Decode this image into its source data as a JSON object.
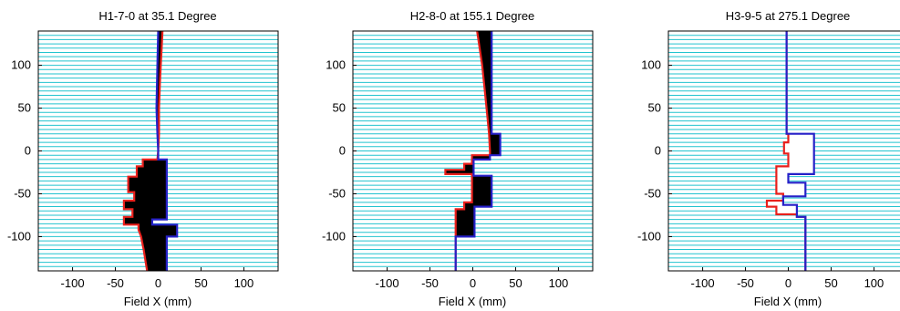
{
  "chart_data": [
    {
      "type": "line",
      "title": "H1-7-0 at 35.1 Degree",
      "xlabel": "Field X (mm)",
      "ylabel": "",
      "xlim": [
        -140,
        140
      ],
      "ylim": [
        -140,
        140
      ],
      "xticks": [
        -100,
        -50,
        0,
        50,
        100
      ],
      "yticks": [
        100,
        50,
        0,
        -50,
        -100
      ],
      "grid": "horizontal cyan lines every 5 mm",
      "fill_between_profiles": "black",
      "series": [
        {
          "color": "#e8201c",
          "points": [
            [
              5,
              140
            ],
            [
              4,
              120
            ],
            [
              3,
              100
            ],
            [
              2,
              80
            ],
            [
              1,
              50
            ],
            [
              1,
              20
            ],
            [
              0,
              0
            ],
            [
              -1,
              -10
            ],
            [
              -18,
              -10
            ],
            [
              -18,
              -18
            ],
            [
              -25,
              -18
            ],
            [
              -25,
              -30
            ],
            [
              -35,
              -30
            ],
            [
              -35,
              -48
            ],
            [
              -28,
              -48
            ],
            [
              -28,
              -58
            ],
            [
              -40,
              -58
            ],
            [
              -40,
              -68
            ],
            [
              -30,
              -68
            ],
            [
              -30,
              -77
            ],
            [
              -40,
              -77
            ],
            [
              -40,
              -86
            ],
            [
              -23,
              -86
            ],
            [
              -23,
              -92
            ],
            [
              -20,
              -100
            ],
            [
              -17,
              -115
            ],
            [
              -13,
              -140
            ]
          ]
        },
        {
          "color": "#2620c8",
          "points": [
            [
              0,
              140
            ],
            [
              -1,
              100
            ],
            [
              -2,
              50
            ],
            [
              -1,
              20
            ],
            [
              0,
              0
            ],
            [
              0,
              -10
            ],
            [
              10,
              -10
            ],
            [
              10,
              -80
            ],
            [
              -7,
              -80
            ],
            [
              -7,
              -86
            ],
            [
              22,
              -86
            ],
            [
              22,
              -100
            ],
            [
              10,
              -100
            ],
            [
              10,
              -140
            ]
          ]
        }
      ]
    },
    {
      "type": "line",
      "title": "H2-8-0 at 155.1 Degree",
      "xlabel": "Field X (mm)",
      "ylabel": "",
      "xlim": [
        -140,
        140
      ],
      "ylim": [
        -140,
        140
      ],
      "xticks": [
        -100,
        -50,
        0,
        50,
        100
      ],
      "yticks": [
        100,
        50,
        0,
        -50,
        -100
      ],
      "grid": "horizontal cyan lines every 5 mm",
      "fill_between_profiles": "black",
      "series": [
        {
          "color": "#e8201c",
          "points": [
            [
              5,
              140
            ],
            [
              8,
              120
            ],
            [
              11,
              100
            ],
            [
              14,
              70
            ],
            [
              17,
              40
            ],
            [
              19,
              20
            ],
            [
              20,
              0
            ],
            [
              20,
              -5
            ],
            [
              -1,
              -5
            ],
            [
              -1,
              -15
            ],
            [
              -10,
              -15
            ],
            [
              -10,
              -22
            ],
            [
              -32,
              -22
            ],
            [
              -32,
              -27
            ],
            [
              -1,
              -27
            ],
            [
              -1,
              -60
            ],
            [
              -10,
              -60
            ],
            [
              -10,
              -68
            ],
            [
              -20,
              -68
            ],
            [
              -20,
              -140
            ]
          ]
        },
        {
          "color": "#2620c8",
          "points": [
            [
              22,
              140
            ],
            [
              22,
              20
            ],
            [
              32,
              20
            ],
            [
              32,
              -5
            ],
            [
              20,
              -5
            ],
            [
              20,
              -10
            ],
            [
              1,
              -10
            ],
            [
              1,
              -29
            ],
            [
              22,
              -29
            ],
            [
              22,
              -65
            ],
            [
              2,
              -65
            ],
            [
              2,
              -100
            ],
            [
              -20,
              -100
            ],
            [
              -20,
              -140
            ]
          ]
        }
      ]
    },
    {
      "type": "line",
      "title": "H3-9-5 at 275.1 Degree",
      "xlabel": "Field X (mm)",
      "ylabel": "",
      "xlim": [
        -140,
        140
      ],
      "ylim": [
        -140,
        140
      ],
      "xticks": [
        -100,
        -50,
        0,
        50,
        100
      ],
      "yticks": [
        100,
        50,
        0,
        -50,
        -100
      ],
      "grid": "horizontal cyan lines every 5 mm",
      "fill_between_profiles": "white",
      "series": [
        {
          "color": "#e8201c",
          "points": [
            [
              -2,
              140
            ],
            [
              -2,
              20
            ],
            [
              0,
              20
            ],
            [
              0,
              10
            ],
            [
              -5,
              10
            ],
            [
              -5,
              -3
            ],
            [
              0,
              -3
            ],
            [
              0,
              -18
            ],
            [
              -14,
              -18
            ],
            [
              -14,
              -50
            ],
            [
              -6,
              -50
            ],
            [
              -6,
              -58
            ],
            [
              -25,
              -58
            ],
            [
              -25,
              -65
            ],
            [
              -14,
              -65
            ],
            [
              -14,
              -74
            ],
            [
              10,
              -74
            ],
            [
              10,
              -77
            ],
            [
              20,
              -77
            ],
            [
              20,
              -140
            ]
          ]
        },
        {
          "color": "#2620c8",
          "points": [
            [
              -2,
              140
            ],
            [
              -2,
              20
            ],
            [
              30,
              20
            ],
            [
              30,
              -27
            ],
            [
              0,
              -27
            ],
            [
              0,
              -37
            ],
            [
              20,
              -37
            ],
            [
              20,
              -53
            ],
            [
              -6,
              -53
            ],
            [
              -6,
              -63
            ],
            [
              10,
              -63
            ],
            [
              10,
              -77
            ],
            [
              20,
              -77
            ],
            [
              20,
              -140
            ]
          ]
        }
      ]
    }
  ]
}
